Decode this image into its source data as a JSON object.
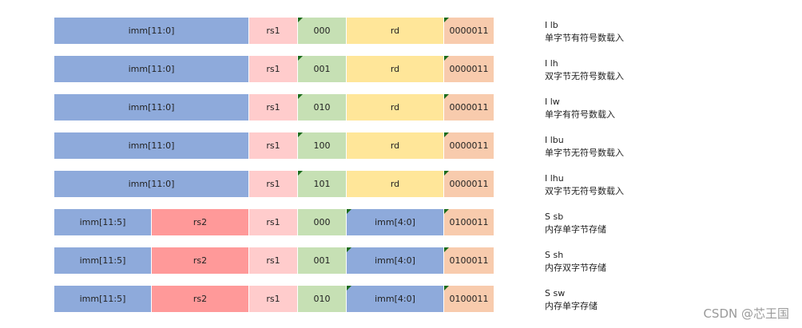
{
  "colors": {
    "imm": "#8eaadb",
    "rs1": "#ffcccc",
    "funct3": "#c6e0b4",
    "rd": "#ffe699",
    "opcode": "#f8cbad",
    "rs2": "#ff9999"
  },
  "rows": [
    {
      "fields": [
        {
          "label": "imm[11:0]",
          "color": "#8eaadb",
          "width": 12
        },
        {
          "label": "rs1",
          "color": "#ffcccc",
          "width": 3
        },
        {
          "label": "000",
          "color": "#c6e0b4",
          "width": 3,
          "flag": true
        },
        {
          "label": "rd",
          "color": "#ffe699",
          "width": 6
        },
        {
          "label": "0000011",
          "color": "#f8cbad",
          "width": 3,
          "flag": true
        }
      ],
      "type": "I lb",
      "desc": "单字节有符号数载入"
    },
    {
      "fields": [
        {
          "label": "imm[11:0]",
          "color": "#8eaadb",
          "width": 12
        },
        {
          "label": "rs1",
          "color": "#ffcccc",
          "width": 3
        },
        {
          "label": "001",
          "color": "#c6e0b4",
          "width": 3,
          "flag": true
        },
        {
          "label": "rd",
          "color": "#ffe699",
          "width": 6
        },
        {
          "label": "0000011",
          "color": "#f8cbad",
          "width": 3,
          "flag": true
        }
      ],
      "type": "I lh",
      "desc": "双字节无符号数载入"
    },
    {
      "fields": [
        {
          "label": "imm[11:0]",
          "color": "#8eaadb",
          "width": 12
        },
        {
          "label": "rs1",
          "color": "#ffcccc",
          "width": 3
        },
        {
          "label": "010",
          "color": "#c6e0b4",
          "width": 3,
          "flag": true
        },
        {
          "label": "rd",
          "color": "#ffe699",
          "width": 6
        },
        {
          "label": "0000011",
          "color": "#f8cbad",
          "width": 3,
          "flag": true
        }
      ],
      "type": "I lw",
      "desc": "单字有符号数载入"
    },
    {
      "fields": [
        {
          "label": "imm[11:0]",
          "color": "#8eaadb",
          "width": 12
        },
        {
          "label": "rs1",
          "color": "#ffcccc",
          "width": 3
        },
        {
          "label": "100",
          "color": "#c6e0b4",
          "width": 3,
          "flag": true
        },
        {
          "label": "rd",
          "color": "#ffe699",
          "width": 6
        },
        {
          "label": "0000011",
          "color": "#f8cbad",
          "width": 3,
          "flag": true
        }
      ],
      "type": "I lbu",
      "desc": "单字节无符号数载入"
    },
    {
      "fields": [
        {
          "label": "imm[11:0]",
          "color": "#8eaadb",
          "width": 12
        },
        {
          "label": "rs1",
          "color": "#ffcccc",
          "width": 3
        },
        {
          "label": "101",
          "color": "#c6e0b4",
          "width": 3,
          "flag": true
        },
        {
          "label": "rd",
          "color": "#ffe699",
          "width": 6
        },
        {
          "label": "0000011",
          "color": "#f8cbad",
          "width": 3,
          "flag": true
        }
      ],
      "type": "I lhu",
      "desc": "双字节无符号数载入"
    },
    {
      "fields": [
        {
          "label": "imm[11:5]",
          "color": "#8eaadb",
          "width": 6
        },
        {
          "label": "rs2",
          "color": "#ff9999",
          "width": 6
        },
        {
          "label": "rs1",
          "color": "#ffcccc",
          "width": 3
        },
        {
          "label": "000",
          "color": "#c6e0b4",
          "width": 3
        },
        {
          "label": "imm[4:0]",
          "color": "#8eaadb",
          "width": 6,
          "flag": true
        },
        {
          "label": "0100011",
          "color": "#f8cbad",
          "width": 3,
          "flag": true
        }
      ],
      "type": "S sb",
      "desc": "内存单字节存储"
    },
    {
      "fields": [
        {
          "label": "imm[11:5]",
          "color": "#8eaadb",
          "width": 6
        },
        {
          "label": "rs2",
          "color": "#ff9999",
          "width": 6
        },
        {
          "label": "rs1",
          "color": "#ffcccc",
          "width": 3
        },
        {
          "label": "001",
          "color": "#c6e0b4",
          "width": 3
        },
        {
          "label": "imm[4:0]",
          "color": "#8eaadb",
          "width": 6,
          "flag": true
        },
        {
          "label": "0100011",
          "color": "#f8cbad",
          "width": 3,
          "flag": true
        }
      ],
      "type": "S sh",
      "desc": "内存双字节存储"
    },
    {
      "fields": [
        {
          "label": "imm[11:5]",
          "color": "#8eaadb",
          "width": 6
        },
        {
          "label": "rs2",
          "color": "#ff9999",
          "width": 6
        },
        {
          "label": "rs1",
          "color": "#ffcccc",
          "width": 3
        },
        {
          "label": "010",
          "color": "#c6e0b4",
          "width": 3
        },
        {
          "label": "imm[4:0]",
          "color": "#8eaadb",
          "width": 6,
          "flag": true
        },
        {
          "label": "0100011",
          "color": "#f8cbad",
          "width": 3,
          "flag": true
        }
      ],
      "type": "S sw",
      "desc": "内存单字存储"
    }
  ],
  "watermark": "CSDN @芯王国"
}
